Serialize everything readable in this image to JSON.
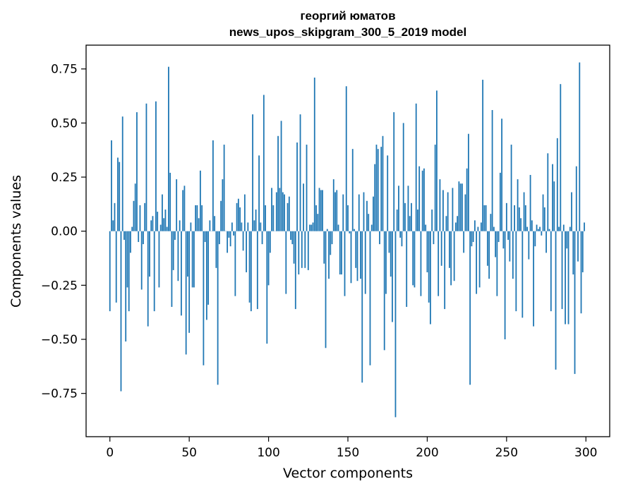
{
  "chart_data": {
    "type": "bar",
    "title_line1": "георгий юматов",
    "title_line2": "news_upos_skipgram_300_5_2019 model",
    "xlabel": "Vector components",
    "ylabel": "Components values",
    "xlim": [
      -15,
      315
    ],
    "ylim": [
      -0.95,
      0.86
    ],
    "x_ticks": [
      0,
      50,
      100,
      150,
      200,
      250,
      300
    ],
    "x_tick_labels": [
      "0",
      "50",
      "100",
      "150",
      "200",
      "250",
      "300"
    ],
    "y_ticks": [
      0.75,
      0.5,
      0.25,
      0.0,
      -0.25,
      -0.5,
      -0.75
    ],
    "y_tick_labels": [
      "0.75",
      "0.50",
      "0.25",
      "0.00",
      "−0.25",
      "−0.50",
      "−0.75"
    ],
    "bar_color": "#1f77b4",
    "grid": false,
    "values": [
      -0.37,
      0.42,
      0.05,
      0.13,
      -0.33,
      0.34,
      0.32,
      -0.74,
      0.53,
      -0.04,
      -0.51,
      -0.26,
      -0.37,
      -0.1,
      0.02,
      0.14,
      0.22,
      0.55,
      -0.05,
      0.12,
      -0.27,
      -0.06,
      0.13,
      0.59,
      -0.44,
      -0.21,
      0.05,
      0.07,
      -0.37,
      0.6,
      0.09,
      -0.26,
      0.03,
      0.17,
      0.06,
      0.1,
      0.02,
      0.76,
      0.27,
      -0.35,
      -0.18,
      -0.04,
      0.24,
      -0.23,
      0.05,
      -0.39,
      0.19,
      0.21,
      -0.57,
      -0.21,
      -0.47,
      0.04,
      -0.26,
      -0.26,
      0.12,
      0.12,
      0.06,
      0.28,
      0.12,
      -0.62,
      -0.05,
      -0.41,
      -0.34,
      0.05,
      0.0,
      0.42,
      0.07,
      -0.17,
      -0.71,
      -0.06,
      0.14,
      0.24,
      0.4,
      0.0,
      -0.1,
      -0.03,
      -0.07,
      0.04,
      -0.02,
      -0.3,
      0.13,
      0.15,
      0.11,
      0.04,
      -0.09,
      0.17,
      -0.19,
      0.04,
      -0.33,
      -0.37,
      0.54,
      0.05,
      0.1,
      -0.36,
      0.35,
      0.04,
      -0.06,
      0.63,
      0.12,
      -0.52,
      -0.25,
      -0.1,
      0.2,
      0.12,
      0.0,
      0.18,
      0.44,
      0.2,
      0.51,
      0.18,
      0.17,
      -0.29,
      0.13,
      0.16,
      -0.04,
      -0.06,
      -0.15,
      -0.36,
      0.41,
      -0.2,
      0.54,
      -0.17,
      0.22,
      -0.17,
      0.4,
      -0.18,
      0.03,
      0.03,
      0.04,
      0.71,
      0.12,
      0.08,
      0.2,
      0.19,
      0.19,
      -0.15,
      -0.54,
      0.01,
      -0.22,
      -0.11,
      -0.06,
      0.24,
      0.18,
      0.19,
      0.03,
      -0.2,
      -0.2,
      0.17,
      -0.3,
      0.67,
      0.12,
      -0.01,
      -0.24,
      0.38,
      0.01,
      -0.17,
      -0.23,
      0.17,
      -0.22,
      -0.7,
      0.18,
      -0.29,
      0.14,
      0.08,
      -0.62,
      0.03,
      0.16,
      0.31,
      0.4,
      0.38,
      -0.06,
      0.39,
      0.44,
      -0.55,
      -0.29,
      0.35,
      -0.1,
      -0.21,
      -0.42,
      0.55,
      -0.86,
      0.1,
      0.21,
      -0.03,
      -0.07,
      0.5,
      0.13,
      -0.35,
      0.21,
      0.07,
      0.13,
      -0.25,
      -0.26,
      0.59,
      0.1,
      0.3,
      -0.3,
      0.28,
      0.29,
      0.03,
      -0.19,
      -0.33,
      -0.43,
      0.1,
      -0.06,
      0.4,
      0.65,
      -0.3,
      0.24,
      -0.16,
      0.19,
      -0.36,
      0.07,
      0.18,
      -0.17,
      -0.25,
      0.2,
      -0.23,
      0.04,
      0.07,
      0.23,
      0.22,
      0.22,
      -0.1,
      0.17,
      0.29,
      0.45,
      -0.71,
      -0.07,
      -0.05,
      0.05,
      -0.29,
      0.02,
      -0.26,
      0.04,
      0.7,
      0.12,
      0.12,
      -0.16,
      -0.22,
      0.08,
      0.56,
      0.02,
      -0.12,
      -0.3,
      -0.05,
      0.27,
      0.52,
      -0.08,
      -0.5,
      0.13,
      -0.04,
      -0.14,
      0.4,
      -0.22,
      0.12,
      -0.37,
      0.24,
      0.11,
      0.06,
      -0.4,
      0.18,
      0.12,
      0.02,
      -0.13,
      0.26,
      0.05,
      -0.44,
      -0.07,
      0.03,
      0.01,
      0.02,
      -0.02,
      0.17,
      0.11,
      -0.1,
      0.36,
      0.01,
      -0.37,
      0.31,
      0.23,
      -0.64,
      0.43,
      0.02,
      0.68,
      -0.36,
      0.03,
      -0.43,
      -0.08,
      -0.43,
      0.02,
      0.18,
      -0.2,
      -0.66,
      0.3,
      -0.14,
      0.78,
      -0.38,
      -0.19,
      0.04
    ]
  }
}
